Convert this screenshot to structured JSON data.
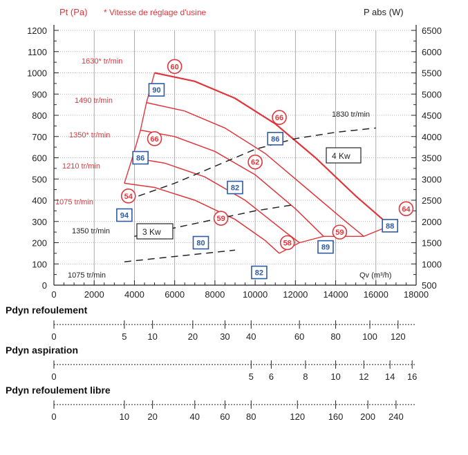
{
  "chart_data": {
    "type": "line",
    "title": "",
    "left_axis_title": "Pt (Pa)",
    "subtitle": "* Vitesse de réglage d'usine",
    "right_axis_title": "P abs (W)",
    "x_axis_title": "Qv (m³/h)",
    "x": {
      "min": 0,
      "max": 18000,
      "ticks": [
        0,
        2000,
        4000,
        6000,
        8000,
        10000,
        12000,
        14000,
        16000,
        18000
      ],
      "tick_labels": [
        "0",
        "2000",
        "4000",
        "6000",
        "8000",
        "10000",
        "12000",
        "14000",
        "16000",
        "18000"
      ]
    },
    "y_left": {
      "min": 0,
      "max": 1200,
      "ticks": [
        0,
        100,
        200,
        300,
        400,
        500,
        600,
        700,
        800,
        900,
        1000,
        1100,
        1200
      ],
      "tick_labels": [
        "0",
        "100",
        "200",
        "300",
        "400",
        "500",
        "600",
        "700",
        "800",
        "900",
        "1000",
        "1100",
        "1200"
      ]
    },
    "y_right": {
      "min": 500,
      "max": 6500,
      "tick_labels": [
        "500",
        "1000",
        "1500",
        "2000",
        "2500",
        "3000",
        "3500",
        "4000",
        "4500",
        "5000",
        "5500",
        "6000",
        "6500"
      ]
    },
    "pressure_curves": [
      {
        "name": "1630* tr/min",
        "x": [
          5000,
          7000,
          9000,
          11000,
          13000,
          15000,
          16700
        ],
        "y": [
          1000,
          960,
          880,
          760,
          600,
          420,
          280
        ]
      },
      {
        "name": "1490 tr/min",
        "x": [
          4600,
          6500,
          8500,
          10500,
          12500,
          14500,
          15400
        ],
        "y": [
          860,
          820,
          740,
          620,
          460,
          300,
          230
        ]
      },
      {
        "name": "1350* tr/min",
        "x": [
          4300,
          6000,
          8000,
          10000,
          12000,
          13400
        ],
        "y": [
          730,
          700,
          630,
          520,
          360,
          230
        ]
      },
      {
        "name": "1210 tr/min",
        "x": [
          3900,
          5500,
          7500,
          9500,
          11500,
          12200
        ],
        "y": [
          600,
          575,
          510,
          400,
          250,
          200
        ]
      },
      {
        "name": "1075 tr/min",
        "x": [
          3500,
          5000,
          7000,
          9000,
          10500,
          11200
        ],
        "y": [
          480,
          460,
          400,
          310,
          210,
          150
        ]
      }
    ],
    "power_curves": [
      {
        "name": "1830 tr/min",
        "x": [
          4200,
          6000,
          8000,
          10000,
          12000,
          14000,
          16000
        ],
        "y": [
          420,
          480,
          560,
          640,
          690,
          720,
          740
        ]
      },
      {
        "name": "1350 tr/min",
        "x": [
          4000,
          6000,
          8000,
          10000,
          12000
        ],
        "y": [
          230,
          270,
          310,
          350,
          380
        ]
      },
      {
        "name": "1075 tr/min",
        "x": [
          3500,
          5500,
          7500,
          9000
        ],
        "y": [
          110,
          130,
          150,
          165
        ]
      }
    ],
    "power_labels": {
      "speed_1830": "1830 tr/min",
      "speed_1350": "1350 tr/min",
      "speed_1075": "1075 tr/min",
      "box_4kw": "4 Kw",
      "box_3kw": "3 Kw"
    },
    "noise_red": [
      {
        "label": "60",
        "x": 6000,
        "y": 1030
      },
      {
        "label": "66",
        "x": 11200,
        "y": 790
      },
      {
        "label": "66",
        "x": 5000,
        "y": 690
      },
      {
        "label": "62",
        "x": 10000,
        "y": 580
      },
      {
        "label": "54",
        "x": 3700,
        "y": 420
      },
      {
        "label": "59",
        "x": 8300,
        "y": 315
      },
      {
        "label": "58",
        "x": 11600,
        "y": 200
      },
      {
        "label": "59",
        "x": 14200,
        "y": 250
      },
      {
        "label": "64",
        "x": 17500,
        "y": 360
      }
    ],
    "noise_blue": [
      {
        "label": "90",
        "x": 5100,
        "y": 920
      },
      {
        "label": "86",
        "x": 11000,
        "y": 690
      },
      {
        "label": "86",
        "x": 4300,
        "y": 600
      },
      {
        "label": "82",
        "x": 9000,
        "y": 460
      },
      {
        "label": "94",
        "x": 3500,
        "y": 330
      },
      {
        "label": "80",
        "x": 7300,
        "y": 200
      },
      {
        "label": "89",
        "x": 13500,
        "y": 180
      },
      {
        "label": "88",
        "x": 16700,
        "y": 280
      },
      {
        "label": "82",
        "x": 10200,
        "y": 60
      }
    ],
    "grid": true
  },
  "scales": [
    {
      "title": "Pdyn refoulement",
      "ticks": [
        {
          "label": "0",
          "x": 0
        },
        {
          "label": "5",
          "x": 3500
        },
        {
          "label": "10",
          "x": 4900
        },
        {
          "label": "20",
          "x": 6900
        },
        {
          "label": "30",
          "x": 8500
        },
        {
          "label": "40",
          "x": 9800
        },
        {
          "label": "60",
          "x": 12200
        },
        {
          "label": "80",
          "x": 14000
        },
        {
          "label": "100",
          "x": 15700
        },
        {
          "label": "120",
          "x": 17100
        }
      ]
    },
    {
      "title": "Pdyn aspiration",
      "ticks": [
        {
          "label": "0",
          "x": 0
        },
        {
          "label": "5",
          "x": 9800
        },
        {
          "label": "6",
          "x": 10800
        },
        {
          "label": "8",
          "x": 12500
        },
        {
          "label": "10",
          "x": 14000
        },
        {
          "label": "12",
          "x": 15400
        },
        {
          "label": "14",
          "x": 16700
        },
        {
          "label": "16",
          "x": 17800
        }
      ]
    },
    {
      "title": "Pdyn refoulement libre",
      "ticks": [
        {
          "label": "0",
          "x": 0
        },
        {
          "label": "10",
          "x": 3500
        },
        {
          "label": "20",
          "x": 4900
        },
        {
          "label": "40",
          "x": 7000
        },
        {
          "label": "60",
          "x": 8500
        },
        {
          "label": "80",
          "x": 9800
        },
        {
          "label": "120",
          "x": 12100
        },
        {
          "label": "160",
          "x": 14000
        },
        {
          "label": "200",
          "x": 15600
        },
        {
          "label": "240",
          "x": 17000
        }
      ]
    }
  ],
  "colors": {
    "red": "#e0353a",
    "blue": "#2d5aa8",
    "grid": "#9a9a9a",
    "axis": "#222222"
  }
}
